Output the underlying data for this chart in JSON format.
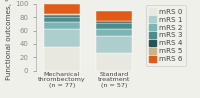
{
  "categories": [
    "Mechanical\nthrombectomy\n(n = 77)",
    "Standard\ntreatment\n(n = 57)"
  ],
  "series_labels": [
    "mRS 0",
    "mRS 1",
    "mRS 2",
    "mRS 3",
    "mRS 4",
    "mRS 5",
    "mRS 6"
  ],
  "series_values": [
    [
      35,
      27
    ],
    [
      28,
      25
    ],
    [
      10,
      10
    ],
    [
      8,
      9
    ],
    [
      3,
      3
    ],
    [
      1,
      1
    ],
    [
      15,
      15
    ]
  ],
  "colors": [
    "#e8e8df",
    "#aecece",
    "#7db5b5",
    "#4d8c8c",
    "#2a5555",
    "#c8b48a",
    "#e05a18"
  ],
  "ylabel": "Functional outcomes, %",
  "ylim": [
    0,
    100
  ],
  "yticks": [
    0,
    20,
    40,
    60,
    80,
    100
  ],
  "bar_width": 0.35,
  "bar_positions": [
    0.25,
    0.75
  ],
  "xlim": [
    0.0,
    1.0
  ],
  "legend_fontsize": 5.2,
  "ylabel_fontsize": 5.2,
  "tick_fontsize": 5.0,
  "xlabel_fontsize": 4.6,
  "bg_color": "#f0f0eb"
}
